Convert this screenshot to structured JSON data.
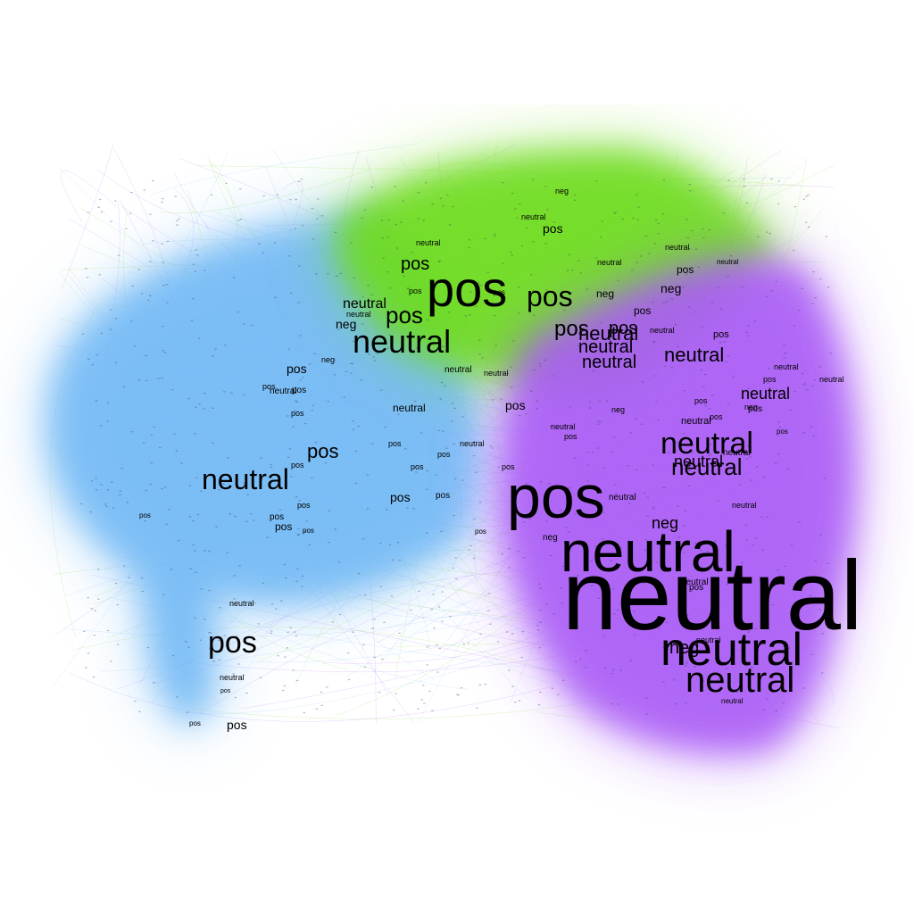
{
  "colors": {
    "background": "#ffffff",
    "community_green": "#6ddc1a",
    "community_blue": "#72b9f5",
    "community_purple": "#aa5cf6",
    "label": "#000000"
  },
  "labels": [
    {
      "text": "neutral",
      "community": "purple"
    },
    {
      "text": "neutral",
      "community": "purple"
    },
    {
      "text": "neutral",
      "community": "purple"
    },
    {
      "text": "neutral",
      "community": "purple"
    },
    {
      "text": "pos",
      "community": "purple"
    },
    {
      "text": "pos",
      "community": "purple"
    },
    {
      "text": "neutral",
      "community": "purple"
    },
    {
      "text": "neutral",
      "community": "purple"
    },
    {
      "text": "neutral",
      "community": "purple"
    },
    {
      "text": "neutral",
      "community": "purple"
    },
    {
      "text": "neutral",
      "community": "purple"
    },
    {
      "text": "neutral",
      "community": "purple"
    },
    {
      "text": "neg",
      "community": "purple"
    },
    {
      "text": "neg",
      "community": "purple"
    },
    {
      "text": "pos",
      "community": "green"
    },
    {
      "text": "pos",
      "community": "green"
    },
    {
      "text": "pos",
      "community": "green"
    },
    {
      "text": "pos",
      "community": "green"
    },
    {
      "text": "neutral",
      "community": "green"
    },
    {
      "text": "neutral",
      "community": "green"
    },
    {
      "text": "neutral",
      "community": "green"
    },
    {
      "text": "neutral",
      "community": "green"
    },
    {
      "text": "neutral",
      "community": "blue"
    },
    {
      "text": "neutral",
      "community": "blue"
    },
    {
      "text": "pos",
      "community": "blue"
    },
    {
      "text": "pos",
      "community": "blue"
    },
    {
      "text": "pos",
      "community": "blue"
    },
    {
      "text": "pos",
      "community": "blue"
    },
    {
      "text": "pos",
      "community": "green"
    },
    {
      "text": "pos",
      "community": "green"
    },
    {
      "text": "pos",
      "community": "green"
    },
    {
      "text": "neg",
      "community": "green"
    },
    {
      "text": "neg",
      "community": "green"
    },
    {
      "text": "pos",
      "community": "green"
    },
    {
      "text": "neg",
      "community": "blue"
    },
    {
      "text": "neutral",
      "community": "blue"
    },
    {
      "text": "pos",
      "community": "blue"
    },
    {
      "text": "pos",
      "community": "blue"
    },
    {
      "text": "pos",
      "community": "blue"
    },
    {
      "text": "neutral",
      "community": "blue"
    },
    {
      "text": "pos",
      "community": "blue"
    },
    {
      "text": "pos",
      "community": "blue"
    },
    {
      "text": "pos",
      "community": "blue"
    },
    {
      "text": "pos",
      "community": "purple"
    },
    {
      "text": "pos",
      "community": "purple"
    },
    {
      "text": "neutral",
      "community": "purple"
    },
    {
      "text": "neutral",
      "community": "purple"
    },
    {
      "text": "neg",
      "community": "purple"
    },
    {
      "text": "pos",
      "community": "purple"
    },
    {
      "text": "neutral",
      "community": "purple"
    },
    {
      "text": "neutral",
      "community": "purple"
    },
    {
      "text": "pos",
      "community": "purple"
    },
    {
      "text": "neutral",
      "community": "purple"
    },
    {
      "text": "pos",
      "community": "blue"
    },
    {
      "text": "pos",
      "community": "blue"
    },
    {
      "text": "pos",
      "community": "blue"
    },
    {
      "text": "neutral",
      "community": "blue"
    },
    {
      "text": "pos",
      "community": "blue"
    },
    {
      "text": "neutral",
      "community": "blue"
    },
    {
      "text": "pos",
      "community": "blue"
    },
    {
      "text": "neutral",
      "community": "blue"
    },
    {
      "text": "pos",
      "community": "blue"
    },
    {
      "text": "neg",
      "community": "blue"
    },
    {
      "text": "pos",
      "community": "green"
    },
    {
      "text": "neutral",
      "community": "green"
    },
    {
      "text": "neutral",
      "community": "green"
    },
    {
      "text": "neg",
      "community": "purple"
    },
    {
      "text": "pos",
      "community": "purple"
    },
    {
      "text": "neutral",
      "community": "purple"
    },
    {
      "text": "pos",
      "community": "purple"
    },
    {
      "text": "neutral",
      "community": "purple"
    },
    {
      "text": "pos",
      "community": "purple"
    },
    {
      "text": "neutral",
      "community": "purple"
    },
    {
      "text": "neutral",
      "community": "purple"
    },
    {
      "text": "neutral",
      "community": "purple"
    },
    {
      "text": "pos",
      "community": "green"
    },
    {
      "text": "neutral",
      "community": "green"
    },
    {
      "text": "pos",
      "community": "green"
    },
    {
      "text": "neutral",
      "community": "green"
    },
    {
      "text": "pos",
      "community": "blue"
    },
    {
      "text": "neutral",
      "community": "blue"
    },
    {
      "text": "neg",
      "community": "blue"
    },
    {
      "text": "pos",
      "community": "blue"
    },
    {
      "text": "pos",
      "community": "blue"
    },
    {
      "text": "pos",
      "community": "blue"
    },
    {
      "text": "neutral",
      "community": "blue"
    },
    {
      "text": "pos",
      "community": "purple"
    },
    {
      "text": "neg",
      "community": "purple"
    },
    {
      "text": "neutral",
      "community": "purple"
    },
    {
      "text": "pos",
      "community": "purple"
    },
    {
      "text": "neutral",
      "community": "purple"
    },
    {
      "text": "pos",
      "community": "blue"
    },
    {
      "text": "neutral",
      "community": "blue"
    }
  ]
}
